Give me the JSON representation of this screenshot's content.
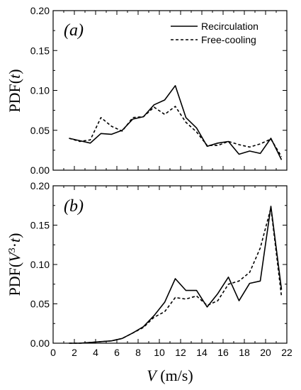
{
  "chart_data": [
    {
      "type": "line",
      "panel_label": "(a)",
      "ylabel": "PDF(t)",
      "xlabel": "",
      "xlim": [
        0,
        22
      ],
      "ylim": [
        0,
        0.2
      ],
      "yticks": [
        "0.00",
        "0.05",
        "0.10",
        "0.15",
        "0.20"
      ],
      "xticks": [],
      "legend": {
        "position": "top-right",
        "entries": [
          "Recirculation",
          "Free-cooling"
        ]
      },
      "x": [
        1.5,
        2.5,
        3.5,
        4.5,
        5.5,
        6.5,
        7.5,
        8.5,
        9.5,
        10.5,
        11.5,
        12.5,
        13.5,
        14.5,
        15.5,
        16.5,
        17.5,
        18.5,
        19.5,
        20.5,
        21.5
      ],
      "series": [
        {
          "name": "Recirculation",
          "style": "solid",
          "values": [
            0.04,
            0.037,
            0.034,
            0.046,
            0.045,
            0.05,
            0.064,
            0.067,
            0.082,
            0.088,
            0.106,
            0.066,
            0.053,
            0.03,
            0.034,
            0.036,
            0.02,
            0.024,
            0.021,
            0.04,
            0.013
          ]
        },
        {
          "name": "Free-cooling",
          "style": "dashed",
          "values": [
            0.04,
            0.036,
            0.038,
            0.066,
            0.055,
            0.049,
            0.066,
            0.067,
            0.079,
            0.07,
            0.08,
            0.06,
            0.048,
            0.031,
            0.031,
            0.036,
            0.032,
            0.029,
            0.033,
            0.039,
            0.017
          ]
        }
      ]
    },
    {
      "type": "line",
      "panel_label": "(b)",
      "ylabel": "PDF(V³·t)",
      "xlabel": "V (m/s)",
      "xlim": [
        0,
        22
      ],
      "ylim": [
        0,
        0.2
      ],
      "yticks": [
        "0.00",
        "0.05",
        "0.10",
        "0.15",
        "0.20"
      ],
      "xticks": [
        "0",
        "2",
        "4",
        "6",
        "8",
        "10",
        "12",
        "14",
        "16",
        "18",
        "20",
        "22"
      ],
      "x": [
        1.5,
        2.5,
        3.5,
        4.5,
        5.5,
        6.5,
        7.5,
        8.5,
        9.5,
        10.5,
        11.5,
        12.5,
        13.5,
        14.5,
        15.5,
        16.5,
        17.5,
        18.5,
        19.5,
        20.5,
        21.5
      ],
      "series": [
        {
          "name": "Recirculation",
          "style": "solid",
          "values": [
            0.0,
            0.0,
            0.001,
            0.002,
            0.003,
            0.006,
            0.013,
            0.021,
            0.035,
            0.052,
            0.082,
            0.067,
            0.067,
            0.046,
            0.063,
            0.084,
            0.054,
            0.076,
            0.079,
            0.174,
            0.068
          ]
        },
        {
          "name": "Free-cooling",
          "style": "dashed",
          "values": [
            0.0,
            0.0,
            0.001,
            0.002,
            0.003,
            0.006,
            0.013,
            0.02,
            0.033,
            0.04,
            0.058,
            0.056,
            0.06,
            0.048,
            0.054,
            0.075,
            0.079,
            0.09,
            0.121,
            0.172,
            0.059
          ]
        }
      ]
    }
  ]
}
